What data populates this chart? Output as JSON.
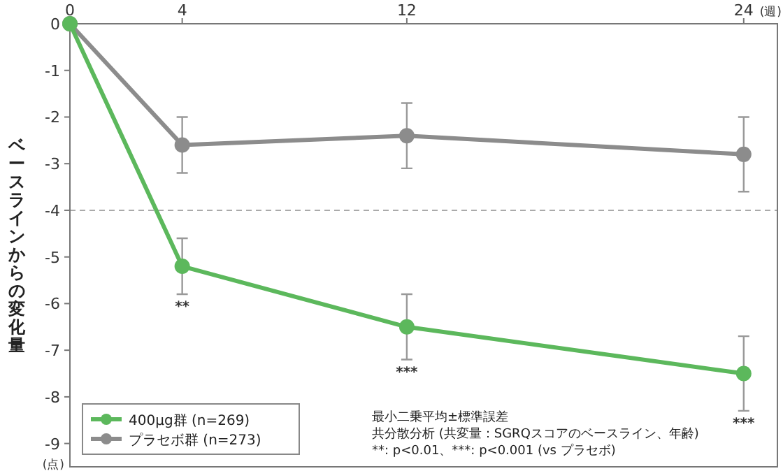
{
  "chart_data": {
    "type": "line",
    "xlabel": "(週)",
    "ylabel": "ベースラインからの変化量",
    "x": [
      0,
      4,
      12,
      24
    ],
    "xlim": [
      0,
      25.2
    ],
    "xticks": [
      0,
      4,
      12,
      24
    ],
    "ylim": [
      -9.5,
      0
    ],
    "yticks": [
      0,
      -1,
      -2,
      -3,
      -4,
      -5,
      -6,
      -7,
      -8,
      -9
    ],
    "grid": false,
    "legend": "bottom left",
    "marker": "circle",
    "line_style": "solid",
    "series": [
      {
        "name": "400μg群 (n=269)",
        "color": "#5cb85c",
        "values": [
          0,
          -5.2,
          -6.5,
          -7.5
        ],
        "errors": [
          null,
          0.6,
          0.7,
          0.8
        ]
      },
      {
        "name": "プラセボ群 (n=273)",
        "color": "#8c8c8c",
        "values": [
          0,
          -2.6,
          -2.4,
          -2.8
        ],
        "errors": [
          null,
          0.6,
          0.7,
          0.8
        ]
      }
    ],
    "ref_lines": [
      {
        "axis": "y",
        "value": -4,
        "color": "#aaaaaa",
        "line_style": "dashed"
      }
    ],
    "annotations": [
      "(点)",
      "**",
      "***",
      "***",
      "最小二乗平均±標準誤差",
      "共分散分析 (共変量：SGRQスコアのベースライン、年齢)",
      "**: p<0.01、***: p<0.001 (vs プラセボ)"
    ]
  }
}
